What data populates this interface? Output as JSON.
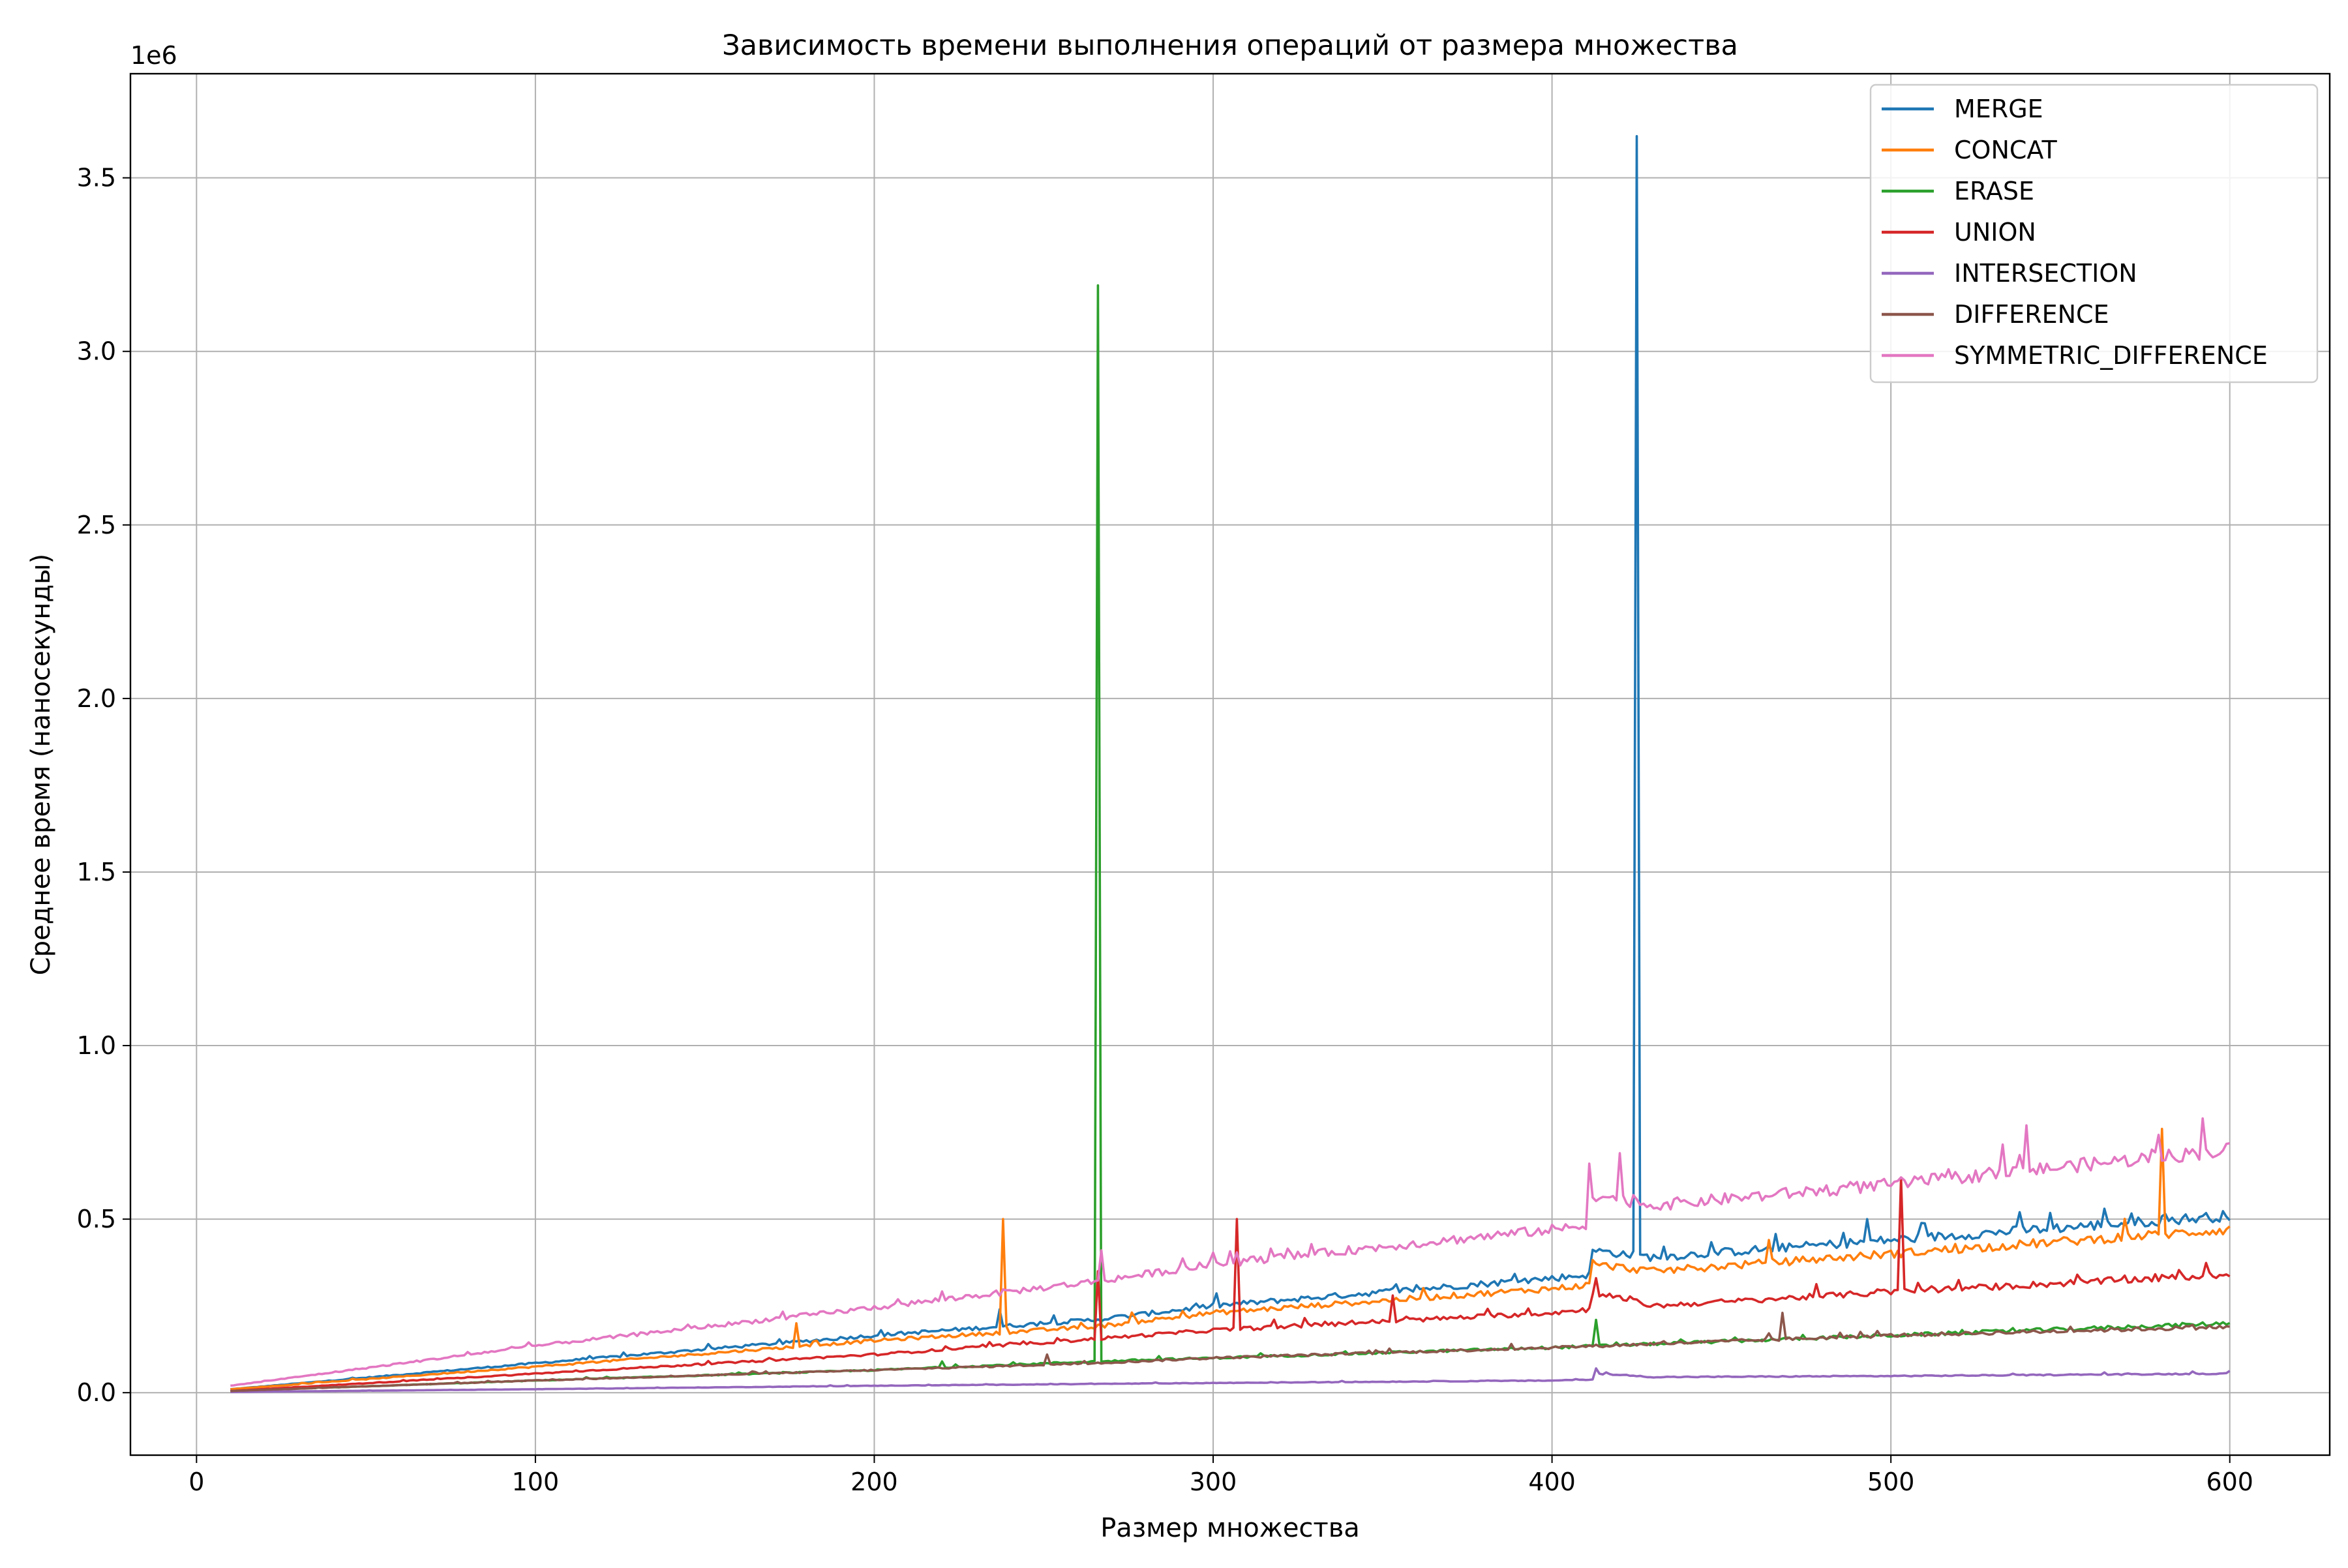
{
  "chart_data": {
    "type": "line",
    "title": "Зависимость времени выполнения операций от размера множества",
    "xlabel": "Размер множества",
    "ylabel": "Среднее время (наносекунды)",
    "y_offset_label": "1e6",
    "xlim": [
      -19.5,
      629.5
    ],
    "ylim": [
      -0.18,
      3.8
    ],
    "xticks": [
      0,
      100,
      200,
      300,
      400,
      500,
      600
    ],
    "xtick_labels": [
      "0",
      "100",
      "200",
      "300",
      "400",
      "500",
      "600"
    ],
    "yticks": [
      0.0,
      0.5,
      1.0,
      1.5,
      2.0,
      2.5,
      3.0,
      3.5
    ],
    "ytick_labels": [
      "0.0",
      "0.5",
      "1.0",
      "1.5",
      "2.0",
      "2.5",
      "3.0",
      "3.5"
    ],
    "grid": true,
    "legend_position": "top-right",
    "x_range": [
      10,
      600
    ],
    "series": [
      {
        "name": "MERGE",
        "color": "#1f77b4",
        "trend": [
          [
            10,
            0.01
          ],
          [
            100,
            0.085
          ],
          [
            200,
            0.165
          ],
          [
            265,
            0.21
          ],
          [
            300,
            0.25
          ],
          [
            400,
            0.33
          ],
          [
            411,
            0.34
          ],
          [
            412,
            0.41
          ],
          [
            430,
            0.39
          ],
          [
            500,
            0.44
          ],
          [
            600,
            0.51
          ]
        ],
        "spikes": [
          [
            425,
            3.62
          ],
          [
            237,
            0.24
          ],
          [
            493,
            0.5
          ],
          [
            538,
            0.52
          ],
          [
            563,
            0.53
          ]
        ]
      },
      {
        "name": "CONCAT",
        "color": "#ff7f0e",
        "trend": [
          [
            10,
            0.01
          ],
          [
            100,
            0.075
          ],
          [
            200,
            0.15
          ],
          [
            265,
            0.19
          ],
          [
            300,
            0.23
          ],
          [
            400,
            0.3
          ],
          [
            411,
            0.31
          ],
          [
            412,
            0.37
          ],
          [
            430,
            0.35
          ],
          [
            500,
            0.4
          ],
          [
            600,
            0.47
          ]
        ],
        "spikes": [
          [
            238,
            0.5
          ],
          [
            580,
            0.76
          ],
          [
            177,
            0.2
          ],
          [
            464,
            0.44
          ]
        ]
      },
      {
        "name": "ERASE",
        "color": "#2ca02c",
        "trend": [
          [
            10,
            0.005
          ],
          [
            100,
            0.035
          ],
          [
            200,
            0.065
          ],
          [
            265,
            0.09
          ],
          [
            300,
            0.1
          ],
          [
            400,
            0.13
          ],
          [
            500,
            0.165
          ],
          [
            600,
            0.2
          ]
        ],
        "spikes": [
          [
            266,
            3.19
          ],
          [
            413,
            0.21
          ],
          [
            220,
            0.09
          ]
        ]
      },
      {
        "name": "UNION",
        "color": "#d62728",
        "trend": [
          [
            10,
            0.005
          ],
          [
            100,
            0.055
          ],
          [
            200,
            0.11
          ],
          [
            265,
            0.155
          ],
          [
            300,
            0.18
          ],
          [
            400,
            0.23
          ],
          [
            411,
            0.24
          ],
          [
            412,
            0.29
          ],
          [
            430,
            0.25
          ],
          [
            500,
            0.29
          ],
          [
            600,
            0.34
          ]
        ],
        "spikes": [
          [
            307,
            0.5
          ],
          [
            503,
            0.62
          ],
          [
            266,
            0.35
          ],
          [
            353,
            0.28
          ],
          [
            413,
            0.33
          ]
        ]
      },
      {
        "name": "INTERSECTION",
        "color": "#9467bd",
        "trend": [
          [
            10,
            0.002
          ],
          [
            100,
            0.01
          ],
          [
            200,
            0.02
          ],
          [
            300,
            0.028
          ],
          [
            400,
            0.035
          ],
          [
            412,
            0.038
          ],
          [
            413,
            0.055
          ],
          [
            430,
            0.045
          ],
          [
            500,
            0.048
          ],
          [
            600,
            0.055
          ]
        ],
        "spikes": [
          [
            413,
            0.07
          ]
        ]
      },
      {
        "name": "DIFFERENCE",
        "color": "#8c564b",
        "trend": [
          [
            10,
            0.005
          ],
          [
            100,
            0.035
          ],
          [
            200,
            0.065
          ],
          [
            265,
            0.085
          ],
          [
            300,
            0.1
          ],
          [
            400,
            0.13
          ],
          [
            500,
            0.165
          ],
          [
            600,
            0.19
          ]
        ],
        "spikes": [
          [
            468,
            0.23
          ],
          [
            251,
            0.11
          ]
        ]
      },
      {
        "name": "SYMMETRIC_DIFFERENCE",
        "color": "#e377c2",
        "trend": [
          [
            10,
            0.02
          ],
          [
            100,
            0.135
          ],
          [
            200,
            0.245
          ],
          [
            265,
            0.32
          ],
          [
            300,
            0.37
          ],
          [
            400,
            0.47
          ],
          [
            411,
            0.48
          ],
          [
            412,
            0.57
          ],
          [
            430,
            0.54
          ],
          [
            500,
            0.6
          ],
          [
            600,
            0.7
          ]
        ],
        "spikes": [
          [
            411,
            0.66
          ],
          [
            420,
            0.69
          ],
          [
            540,
            0.77
          ],
          [
            592,
            0.79
          ],
          [
            267,
            0.41
          ]
        ]
      }
    ]
  }
}
